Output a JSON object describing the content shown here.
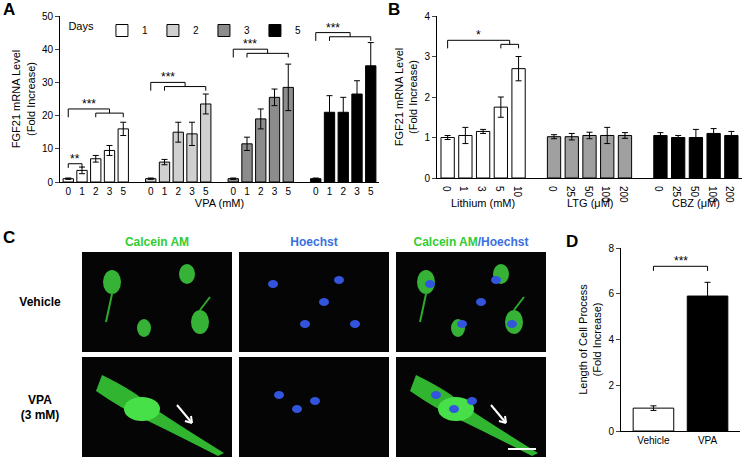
{
  "chart_data": [
    {
      "panel": "A",
      "type": "bar",
      "y_label": [
        "FGF21 mRNA Level",
        "(Fold Increase)"
      ],
      "x_label": "VPA (mM)",
      "categories": [
        "0",
        "1",
        "2",
        "3",
        "5"
      ],
      "series": [
        {
          "name": "1",
          "color": "#ffffff",
          "values": [
            1,
            3.5,
            7,
            9.5,
            16
          ],
          "errors": [
            0.2,
            1,
            1,
            1.5,
            2
          ]
        },
        {
          "name": "2",
          "color": "#d0d0d0",
          "values": [
            1,
            6,
            15,
            14.5,
            23.5
          ],
          "errors": [
            0.2,
            0.8,
            3,
            3.5,
            3
          ]
        },
        {
          "name": "3",
          "color": "#8c8c8c",
          "values": [
            1,
            11.5,
            19,
            25.5,
            28.5
          ],
          "errors": [
            0.2,
            2,
            3,
            2.5,
            7
          ]
        },
        {
          "name": "5",
          "color": "#000000",
          "values": [
            1,
            21,
            21,
            26.5,
            35
          ],
          "errors": [
            0.2,
            5,
            4.5,
            4,
            7
          ]
        }
      ],
      "legend": "top left",
      "legend_title": "Days",
      "ylim": [
        0,
        50
      ],
      "yticks": [
        0,
        10,
        20,
        30,
        40,
        50
      ],
      "grid": false,
      "brackets": [
        {
          "series": 0,
          "from": 0,
          "to": 1,
          "y": 5.5,
          "text": "**"
        },
        {
          "series": 0,
          "from": 0,
          "to": [
            2,
            4
          ],
          "y": 22,
          "text": "***"
        },
        {
          "series": 1,
          "from": 0,
          "to": [
            1,
            4
          ],
          "y": 30,
          "text": "***"
        },
        {
          "series": 2,
          "from": 0,
          "to": [
            1,
            4
          ],
          "y": 40,
          "text": "***"
        },
        {
          "series": 3,
          "from": 0,
          "to": [
            1,
            4
          ],
          "y": 45,
          "text": "***"
        }
      ]
    },
    {
      "panel": "B",
      "type": "bar",
      "y_label": [
        "FGF21 mRNA Level",
        "(Fold Increase)"
      ],
      "series": [
        {
          "name": "Lithium (mM)",
          "color": "#ffffff",
          "categories": [
            "0",
            "1",
            "3",
            "5",
            "10"
          ],
          "values": [
            1,
            1.05,
            1.15,
            1.75,
            2.7
          ],
          "errors": [
            0.05,
            0.2,
            0.05,
            0.25,
            0.3
          ]
        },
        {
          "name": "LTG (μM)",
          "color": "#a0a0a0",
          "categories": [
            "0",
            "25",
            "50",
            "100",
            "200"
          ],
          "values": [
            1.02,
            1.02,
            1.05,
            1.05,
            1.05
          ],
          "errors": [
            0.05,
            0.08,
            0.08,
            0.2,
            0.07
          ]
        },
        {
          "name": "CBZ (μM)",
          "color": "#000000",
          "categories": [
            "0",
            "25",
            "50",
            "100",
            "200"
          ],
          "values": [
            1.05,
            1,
            1,
            1.1,
            1.05
          ],
          "errors": [
            0.07,
            0.05,
            0.2,
            0.12,
            0.1
          ]
        }
      ],
      "ylim": [
        0,
        4
      ],
      "yticks": [
        0,
        1,
        2,
        3,
        4
      ],
      "grid": false,
      "brackets": [
        {
          "series": 0,
          "from": 0,
          "to": [
            3,
            4
          ],
          "y": 3.4,
          "text": "*"
        }
      ]
    },
    {
      "panel": "D",
      "type": "bar",
      "y_label": [
        "Length of Cell Process",
        "(Fold Increase)"
      ],
      "categories": [
        "Vehicle",
        "VPA"
      ],
      "values": [
        1,
        5.9
      ],
      "errors": [
        0.1,
        0.6
      ],
      "colors": [
        "#ffffff",
        "#000000"
      ],
      "ylim": [
        0,
        8
      ],
      "yticks": [
        0,
        2,
        4,
        6,
        8
      ],
      "grid": false,
      "brackets": [
        {
          "from": 0,
          "to": 1,
          "y": 7.2,
          "text": "***"
        }
      ]
    }
  ],
  "panel_c": {
    "panel": "C",
    "columns": [
      [
        {
          "text": "Calcein AM",
          "color": "#33cc33"
        }
      ],
      [
        {
          "text": "Hoechst",
          "color": "#3a6fe0"
        }
      ],
      [
        {
          "text": "Calcein AM",
          "color": "#33cc33"
        },
        {
          "text": "/Hoechst",
          "color": "#3a6fe0"
        }
      ]
    ],
    "rows": [
      [
        "Vehicle"
      ],
      [
        "VPA",
        "(3 mM)"
      ]
    ]
  }
}
